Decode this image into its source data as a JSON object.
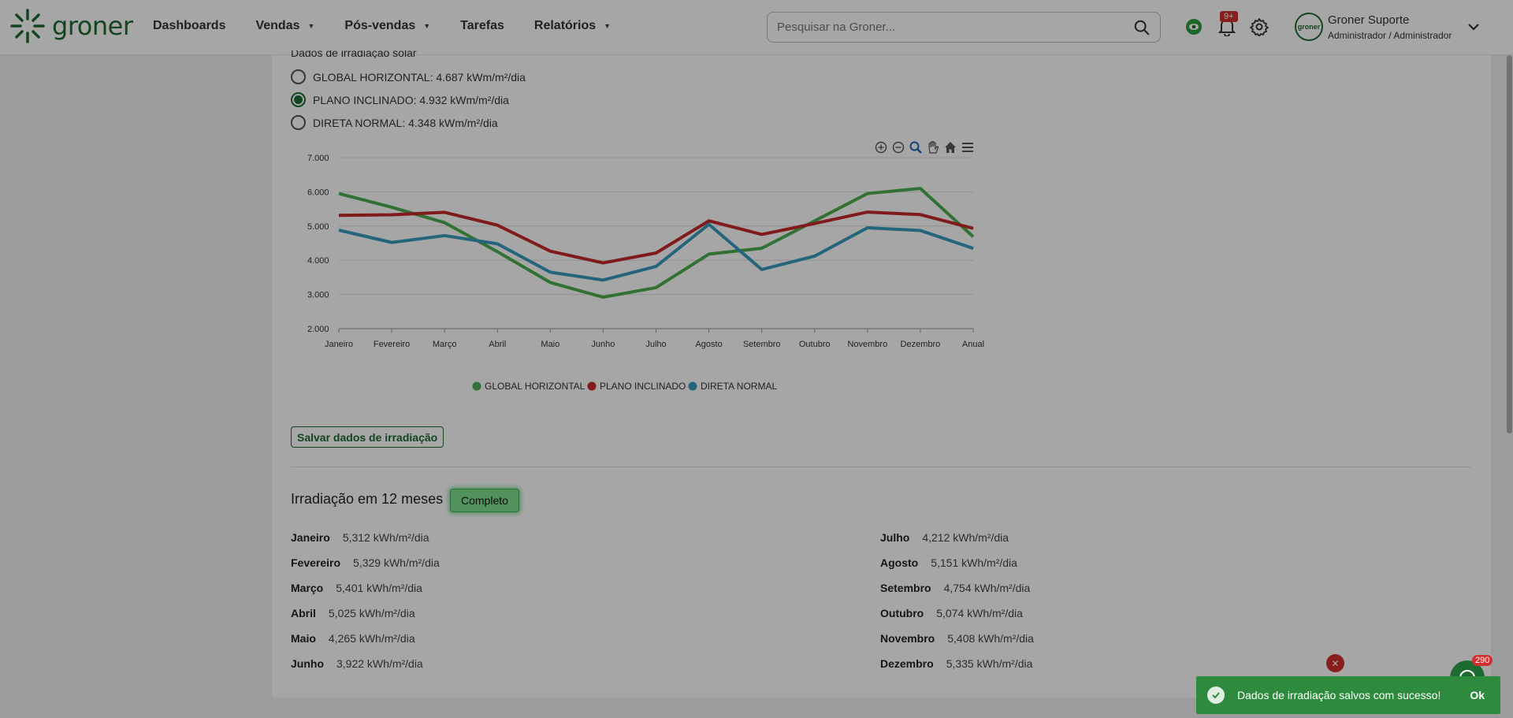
{
  "header": {
    "logo_text": "groner",
    "nav": [
      {
        "label": "Dashboards",
        "dropdown": false
      },
      {
        "label": "Vendas",
        "dropdown": true
      },
      {
        "label": "Pós-vendas",
        "dropdown": true
      },
      {
        "label": "Tarefas",
        "dropdown": false
      },
      {
        "label": "Relatórios",
        "dropdown": true
      }
    ],
    "search_placeholder": "Pesquisar na Groner...",
    "notification_badge": "9+",
    "user_name": "Groner Suporte",
    "user_role": "Administrador / Administrador",
    "avatar_text": "groner"
  },
  "irradiation": {
    "section_title": "Dados de irradiação solar",
    "options": [
      {
        "label": "GLOBAL HORIZONTAL: 4.687 kWm/m²/dia",
        "checked": false
      },
      {
        "label": "PLANO INCLINADO: 4.932 kWm/m²/dia",
        "checked": true
      },
      {
        "label": "DIRETA NORMAL: 4.348 kWm/m²/dia",
        "checked": false
      }
    ],
    "save_label": "Salvar dados de irradiação"
  },
  "chart_data": {
    "type": "line",
    "categories": [
      "Janeiro",
      "Fevereiro",
      "Março",
      "Abril",
      "Maio",
      "Junho",
      "Julho",
      "Agosto",
      "Setembro",
      "Outubro",
      "Novembro",
      "Dezembro",
      "Anual"
    ],
    "yticks": [
      "7.000",
      "6.000",
      "5.000",
      "4.000",
      "3.000",
      "2.000"
    ],
    "ylim": [
      2,
      7
    ],
    "grid": true,
    "legend_position": "bottom",
    "series": [
      {
        "name": "GLOBAL HORIZONTAL",
        "color": "#4caf50",
        "values": [
          5.95,
          5.55,
          5.1,
          4.25,
          3.35,
          2.92,
          3.2,
          4.18,
          4.35,
          5.15,
          5.95,
          6.1,
          4.687
        ]
      },
      {
        "name": "PLANO INCLINADO",
        "color": "#c62828",
        "values": [
          5.312,
          5.329,
          5.401,
          5.025,
          4.265,
          3.922,
          4.212,
          5.151,
          4.754,
          5.074,
          5.408,
          5.335,
          4.932
        ]
      },
      {
        "name": "DIRETA NORMAL",
        "color": "#3a9bbf",
        "values": [
          4.88,
          4.52,
          4.72,
          4.48,
          3.65,
          3.42,
          3.82,
          5.05,
          3.73,
          4.12,
          4.95,
          4.87,
          4.348
        ]
      }
    ]
  },
  "months_section": {
    "title": "Irradiação em 12 meses",
    "status_label": "Completo",
    "left": [
      {
        "month": "Janeiro",
        "value": "5,312 kWh/m²/dia"
      },
      {
        "month": "Fevereiro",
        "value": "5,329 kWh/m²/dia"
      },
      {
        "month": "Março",
        "value": "5,401 kWh/m²/dia"
      },
      {
        "month": "Abril",
        "value": "5,025 kWh/m²/dia"
      },
      {
        "month": "Maio",
        "value": "4,265 kWh/m²/dia"
      },
      {
        "month": "Junho",
        "value": "3,922 kWh/m²/dia"
      }
    ],
    "right": [
      {
        "month": "Julho",
        "value": "4,212 kWh/m²/dia"
      },
      {
        "month": "Agosto",
        "value": "5,151 kWh/m²/dia"
      },
      {
        "month": "Setembro",
        "value": "4,754 kWh/m²/dia"
      },
      {
        "month": "Outubro",
        "value": "5,074 kWh/m²/dia"
      },
      {
        "month": "Novembro",
        "value": "5,408 kWh/m²/dia"
      },
      {
        "month": "Dezembro",
        "value": "5,335 kWh/m²/dia"
      }
    ]
  },
  "toast": {
    "message": "Dados de irradiação salvos com sucesso!",
    "ok_label": "Ok"
  },
  "fab_badge": "290"
}
